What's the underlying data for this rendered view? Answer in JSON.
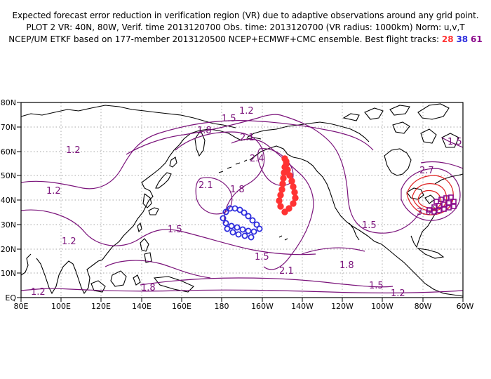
{
  "title": {
    "line1": "Expected forecast error reduction in verification region (VR) due to adaptive observations around any grid point.",
    "line2": "PLOT 2 VR: 40N, 80W, Verif. time 2013120700 Obs. time: 2013120700 (VR radius: 1000km) Norm: u,v,T",
    "line3_prefix": "NCEP/UM ETKF based on 177-member 2013120500 NCEP+ECMWF+CMC ensemble. Best flight tracks:",
    "tracks": [
      {
        "label": "28",
        "color": "#ff3333"
      },
      {
        "label": "38",
        "color": "#2b2bdd"
      },
      {
        "label": "61",
        "color": "#8b0a8b"
      }
    ]
  },
  "map": {
    "lon_labels": [
      "80E",
      "100E",
      "120E",
      "140E",
      "160E",
      "180",
      "160W",
      "140W",
      "120W",
      "100W",
      "80W",
      "60W"
    ],
    "lat_labels": [
      "EQ",
      "10N",
      "20N",
      "30N",
      "40N",
      "50N",
      "60N",
      "70N",
      "80N"
    ],
    "contour_labels": [
      "1.2",
      "1.5",
      "1.8",
      "2.1",
      "2.4",
      "1.2",
      "1.2",
      "1.2",
      "2.1",
      "1.8",
      "1.5",
      "1.8",
      "1.5",
      "2.1",
      "1.8",
      "1.5",
      "1.2",
      "1.5",
      "1.5",
      "2.7",
      "3.6"
    ],
    "contour_color": "#7a127a",
    "high_contour_color": "#e02020",
    "track_colors": {
      "track_28": "#ff3333",
      "track_38": "#2b2bdd",
      "track_61": "#8b0a8b"
    }
  }
}
